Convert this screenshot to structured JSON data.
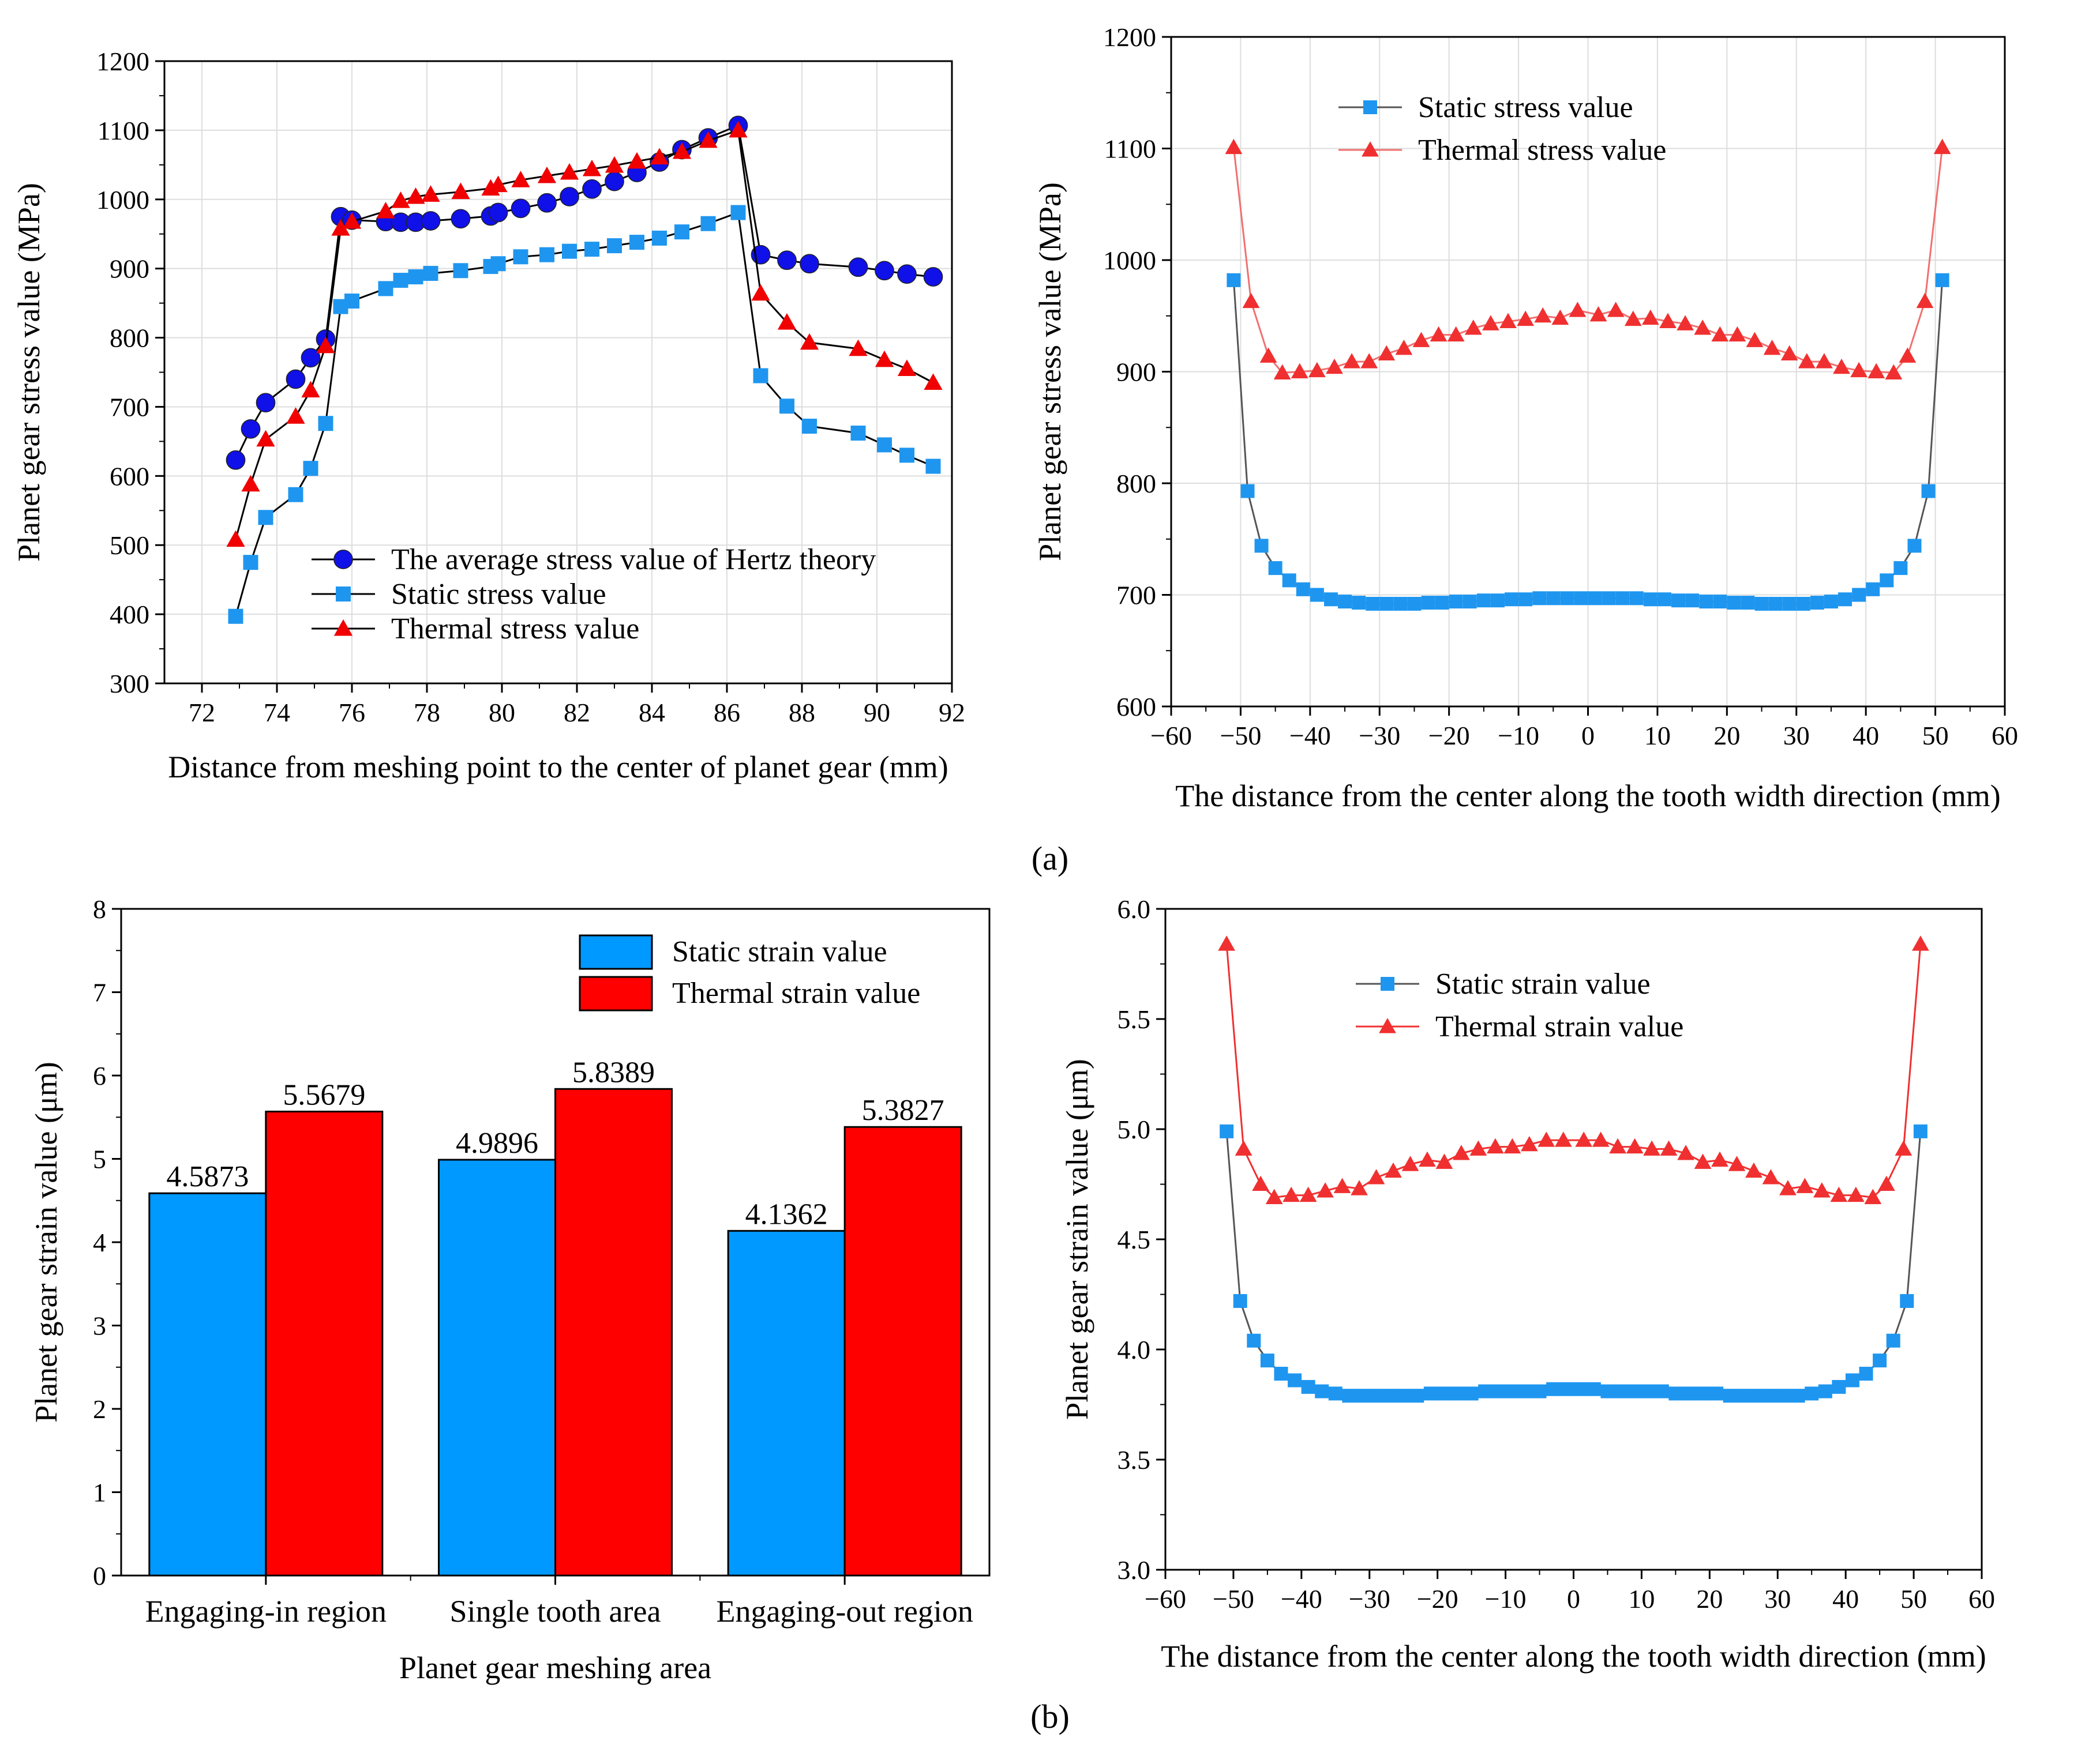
{
  "panel_labels": {
    "a": "(a)",
    "b": "(b)"
  },
  "chart_data": [
    {
      "type": "line",
      "xlabel": "Distance from meshing point to the center of planet gear (mm)",
      "ylabel": "Planet gear stress value (MPa)",
      "xlim": [
        71,
        92
      ],
      "ylim": [
        300,
        1200
      ],
      "xticks": [
        72,
        74,
        76,
        78,
        80,
        82,
        84,
        86,
        88,
        90,
        92
      ],
      "yticks": [
        300,
        400,
        500,
        600,
        700,
        800,
        900,
        1000,
        1100,
        1200
      ],
      "grid": true,
      "legend_position": "bottom-center",
      "series": [
        {
          "name": "The average stress value of Hertz theory",
          "marker": "circle",
          "color": "#1010e8",
          "line_color": "#000000",
          "x": [
            72.9,
            73.3,
            73.7,
            74.5,
            74.9,
            75.3,
            75.7,
            76.0,
            76.9,
            77.3,
            77.7,
            78.1,
            78.9,
            79.7,
            79.9,
            80.5,
            81.2,
            81.8,
            82.4,
            83.0,
            83.6,
            84.2,
            84.8,
            85.5,
            86.3,
            86.9,
            87.6,
            88.2,
            89.5,
            90.2,
            90.8,
            91.5
          ],
          "y": [
            623,
            668,
            706,
            740,
            771,
            798,
            975,
            970,
            968,
            967,
            967,
            969,
            972,
            976,
            981,
            987,
            995,
            1004,
            1015,
            1026,
            1039,
            1054,
            1072,
            1089,
            1107,
            920,
            912,
            907,
            902,
            897,
            892,
            888
          ]
        },
        {
          "name": "Static stress value",
          "marker": "square",
          "color": "#1e96f0",
          "line_color": "#000000",
          "x": [
            72.9,
            73.3,
            73.7,
            74.5,
            74.9,
            75.3,
            75.7,
            76.0,
            76.9,
            77.3,
            77.7,
            78.1,
            78.9,
            79.7,
            79.9,
            80.5,
            81.2,
            81.8,
            82.4,
            83.0,
            83.6,
            84.2,
            84.8,
            85.5,
            86.3,
            86.9,
            87.6,
            88.2,
            89.5,
            90.2,
            90.8,
            91.5
          ],
          "y": [
            397,
            475,
            540,
            573,
            611,
            676,
            845,
            853,
            871,
            883,
            888,
            893,
            897,
            903,
            907,
            917,
            920,
            925,
            928,
            933,
            938,
            944,
            953,
            965,
            981,
            745,
            701,
            672,
            662,
            645,
            630,
            614
          ]
        },
        {
          "name": "Thermal stress value",
          "marker": "triangle",
          "color": "#f00000",
          "line_color": "#000000",
          "x": [
            72.9,
            73.3,
            73.7,
            74.5,
            74.9,
            75.3,
            75.7,
            76.0,
            76.9,
            77.3,
            77.7,
            78.1,
            78.9,
            79.7,
            79.9,
            80.5,
            81.2,
            81.8,
            82.4,
            83.0,
            83.6,
            84.2,
            84.8,
            85.5,
            86.3,
            86.9,
            87.6,
            88.2,
            89.5,
            90.2,
            90.8,
            91.5
          ],
          "y": [
            508,
            588,
            653,
            686,
            724,
            788,
            958,
            968,
            983,
            998,
            1004,
            1007,
            1011,
            1016,
            1021,
            1028,
            1034,
            1039,
            1044,
            1049,
            1055,
            1061,
            1069,
            1085,
            1100,
            864,
            822,
            793,
            784,
            768,
            755,
            735
          ]
        }
      ]
    },
    {
      "type": "line",
      "xlabel": "The distance from the center along the tooth width direction (mm)",
      "ylabel": "Planet gear stress value (MPa)",
      "xlim": [
        -60,
        60
      ],
      "ylim": [
        600,
        1200
      ],
      "xticks": [
        -60,
        -50,
        -40,
        -30,
        -20,
        -10,
        0,
        10,
        20,
        30,
        40,
        50,
        60
      ],
      "xticklabels": [
        "−60",
        "−50",
        "−40",
        "−30",
        "−20",
        "−10",
        "0",
        "10",
        "20",
        "30",
        "40",
        "50",
        "60"
      ],
      "yticks": [
        600,
        700,
        800,
        900,
        1000,
        1100,
        1200
      ],
      "grid": true,
      "legend_position": "top-left",
      "series": [
        {
          "name": "Static stress value",
          "marker": "square",
          "color": "#1e96f0",
          "line_color": "#555555",
          "x": [
            -51,
            -49,
            -47,
            -45,
            -43,
            -41,
            -39,
            -37,
            -35,
            -33,
            -31,
            -29,
            -27,
            -25,
            -23,
            -21,
            -19,
            -17,
            -15,
            -13,
            -11,
            -9,
            -7,
            -5,
            -3,
            -1,
            1,
            3,
            5,
            7,
            9,
            11,
            13,
            15,
            17,
            19,
            21,
            23,
            25,
            27,
            29,
            31,
            33,
            35,
            37,
            39,
            41,
            43,
            45,
            47,
            49,
            51
          ],
          "y": [
            982,
            793,
            744,
            724,
            713,
            705,
            700,
            696,
            694,
            693,
            692,
            692,
            692,
            692,
            693,
            693,
            694,
            694,
            695,
            695,
            696,
            696,
            697,
            697,
            697,
            697,
            697,
            697,
            697,
            697,
            696,
            696,
            695,
            695,
            694,
            694,
            693,
            693,
            692,
            692,
            692,
            692,
            693,
            694,
            696,
            700,
            705,
            713,
            724,
            744,
            793,
            982
          ]
        },
        {
          "name": "Thermal stress value",
          "marker": "triangle",
          "color": "#f03030",
          "line_color": "#f07070",
          "x": [
            -51,
            -48.5,
            -46,
            -44,
            -41.5,
            -39,
            -36.5,
            -34,
            -31.5,
            -29,
            -26.5,
            -24,
            -21.5,
            -19,
            -16.5,
            -14,
            -11.5,
            -9,
            -6.5,
            -4,
            -1.5,
            1.5,
            4,
            6.5,
            9,
            11.5,
            14,
            16.5,
            19,
            21.5,
            24,
            26.5,
            29,
            31.5,
            34,
            36.5,
            39,
            41.5,
            44,
            46,
            48.5,
            51
          ],
          "y": [
            1101,
            963,
            914,
            899,
            900,
            901,
            904,
            909,
            909,
            916,
            921,
            928,
            933,
            933,
            939,
            943,
            945,
            947,
            950,
            948,
            955,
            951,
            955,
            947,
            948,
            945,
            943,
            939,
            933,
            933,
            928,
            921,
            916,
            909,
            909,
            904,
            901,
            900,
            899,
            914,
            963,
            1101
          ]
        }
      ]
    },
    {
      "type": "bar",
      "xlabel": "Planet gear meshing area",
      "ylabel": "Planet gear strain value (μm)",
      "ylim": [
        0,
        8
      ],
      "yticks": [
        0,
        1,
        2,
        3,
        4,
        5,
        6,
        7,
        8
      ],
      "categories": [
        "Engaging-in region",
        "Single tooth area",
        "Engaging-out region"
      ],
      "legend_position": "top-right",
      "series": [
        {
          "name": "Static strain value",
          "color": "#0099ff",
          "values": [
            4.5873,
            4.9896,
            4.1362
          ],
          "labels": [
            "4.5873",
            "4.9896",
            "4.1362"
          ]
        },
        {
          "name": "Thermal strain value",
          "color": "#ff0000",
          "values": [
            5.5679,
            5.8389,
            5.3827
          ],
          "labels": [
            "5.5679",
            "5.8389",
            "5.3827"
          ]
        }
      ]
    },
    {
      "type": "line",
      "xlabel": "The distance from the center along the tooth width direction (mm)",
      "ylabel": "Planet gear strain value (μm)",
      "xlim": [
        -60,
        60
      ],
      "ylim": [
        3.0,
        6.0
      ],
      "xticks": [
        -60,
        -50,
        -40,
        -30,
        -20,
        -10,
        0,
        10,
        20,
        30,
        40,
        50,
        60
      ],
      "xticklabels": [
        "−60",
        "−50",
        "−40",
        "−30",
        "−20",
        "−10",
        "0",
        "10",
        "20",
        "30",
        "40",
        "50",
        "60"
      ],
      "yticks": [
        3.0,
        3.5,
        4.0,
        4.5,
        5.0,
        5.5,
        6.0
      ],
      "yticklabels": [
        "3.0",
        "3.5",
        "4.0",
        "4.5",
        "5.0",
        "5.5",
        "6.0"
      ],
      "grid": false,
      "legend_position": "top-left",
      "series": [
        {
          "name": "Static strain value",
          "marker": "square",
          "color": "#1e96f0",
          "line_color": "#555555",
          "x": [
            -51,
            -49,
            -47,
            -45,
            -43,
            -41,
            -39,
            -37,
            -35,
            -33,
            -31,
            -29,
            -27,
            -25,
            -23,
            -21,
            -19,
            -17,
            -15,
            -13,
            -11,
            -9,
            -7,
            -5,
            -3,
            -1,
            1,
            3,
            5,
            7,
            9,
            11,
            13,
            15,
            17,
            19,
            21,
            23,
            25,
            27,
            29,
            31,
            33,
            35,
            37,
            39,
            41,
            43,
            45,
            47,
            49,
            51
          ],
          "y": [
            4.99,
            4.22,
            4.04,
            3.95,
            3.89,
            3.86,
            3.83,
            3.81,
            3.8,
            3.79,
            3.79,
            3.79,
            3.79,
            3.79,
            3.79,
            3.8,
            3.8,
            3.8,
            3.8,
            3.81,
            3.81,
            3.81,
            3.81,
            3.81,
            3.82,
            3.82,
            3.82,
            3.82,
            3.81,
            3.81,
            3.81,
            3.81,
            3.81,
            3.8,
            3.8,
            3.8,
            3.8,
            3.79,
            3.79,
            3.79,
            3.79,
            3.79,
            3.79,
            3.8,
            3.81,
            3.83,
            3.86,
            3.89,
            3.95,
            4.04,
            4.22,
            4.99
          ]
        },
        {
          "name": "Thermal strain value",
          "marker": "triangle",
          "color": "#f03030",
          "line_color": "#f03030",
          "x": [
            -51,
            -48.5,
            -46,
            -44,
            -41.5,
            -39,
            -36.5,
            -34,
            -31.5,
            -29,
            -26.5,
            -24,
            -21.5,
            -19,
            -16.5,
            -14,
            -11.5,
            -9,
            -6.5,
            -4,
            -1.5,
            1.5,
            4,
            6.5,
            9,
            11.5,
            14,
            16.5,
            19,
            21.5,
            24,
            26.5,
            29,
            31.5,
            34,
            36.5,
            39,
            41.5,
            44,
            46,
            48.5,
            51
          ],
          "y": [
            5.84,
            4.91,
            4.75,
            4.69,
            4.7,
            4.7,
            4.72,
            4.74,
            4.73,
            4.78,
            4.81,
            4.84,
            4.86,
            4.85,
            4.89,
            4.91,
            4.92,
            4.92,
            4.93,
            4.95,
            4.95,
            4.95,
            4.95,
            4.92,
            4.92,
            4.91,
            4.91,
            4.89,
            4.85,
            4.86,
            4.84,
            4.81,
            4.78,
            4.73,
            4.74,
            4.72,
            4.7,
            4.7,
            4.69,
            4.75,
            4.91,
            5.84
          ]
        }
      ]
    }
  ]
}
